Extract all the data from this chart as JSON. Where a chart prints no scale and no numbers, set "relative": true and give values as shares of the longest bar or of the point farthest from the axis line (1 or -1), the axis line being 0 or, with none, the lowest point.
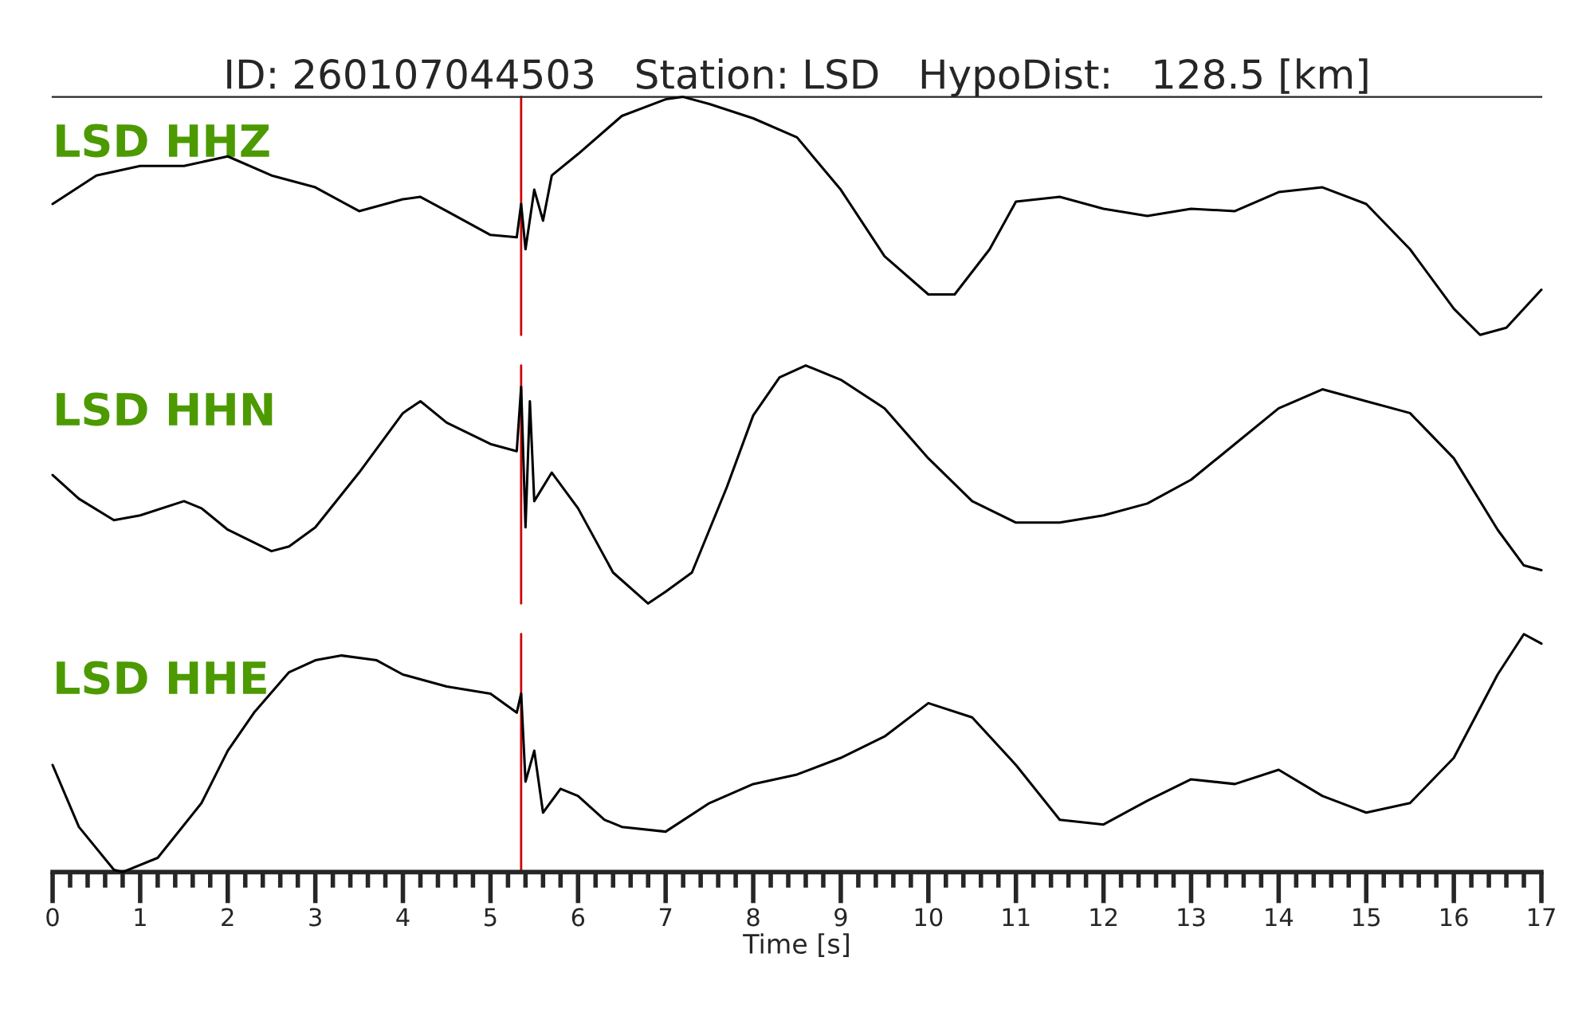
{
  "chart_data": [
    {
      "type": "line",
      "title": "ID: 260107044503   Station: LSD   HypoDist:   128.5 [km]",
      "relative": true,
      "xlim": [
        0,
        17
      ],
      "tick_labels": false,
      "legend": false,
      "grid": false,
      "ref_lines": [
        {
          "axis": "x",
          "value": 5.35,
          "color": "#cc0000"
        }
      ],
      "series": [
        {
          "name": "LSD HHZ",
          "color": "#000000",
          "x": [
            0,
            0.5,
            1,
            1.5,
            2,
            2.5,
            3,
            3.5,
            4,
            4.2,
            4.5,
            5,
            5.3,
            5.35,
            5.4,
            5.5,
            5.6,
            5.7,
            6,
            6.5,
            7,
            7.2,
            7.5,
            8,
            8.5,
            9,
            9.5,
            10,
            10.3,
            10.7,
            11,
            11.5,
            12,
            12.5,
            13,
            13.5,
            14,
            14.5,
            15,
            15.5,
            16,
            16.3,
            16.6,
            17
          ],
          "values": [
            0.55,
            0.67,
            0.71,
            0.71,
            0.75,
            0.67,
            0.62,
            0.52,
            0.57,
            0.58,
            0.52,
            0.42,
            0.41,
            0.55,
            0.36,
            0.61,
            0.48,
            0.67,
            0.76,
            0.92,
            0.99,
            1,
            0.97,
            0.91,
            0.83,
            0.61,
            0.33,
            0.17,
            0.17,
            0.36,
            0.56,
            0.58,
            0.53,
            0.5,
            0.53,
            0.52,
            0.6,
            0.62,
            0.55,
            0.36,
            0.11,
            0,
            0.03,
            0.19
          ]
        }
      ]
    },
    {
      "type": "line",
      "relative": true,
      "xlim": [
        0,
        17
      ],
      "tick_labels": false,
      "legend": false,
      "grid": false,
      "ref_lines": [
        {
          "axis": "x",
          "value": 5.35,
          "color": "#cc0000"
        }
      ],
      "series": [
        {
          "name": "LSD HHN",
          "color": "#000000",
          "x": [
            0,
            0.3,
            0.7,
            1,
            1.5,
            1.7,
            2,
            2.5,
            2.7,
            3,
            3.5,
            4,
            4.2,
            4.5,
            5,
            5.3,
            5.35,
            5.4,
            5.45,
            5.5,
            5.7,
            6,
            6.4,
            6.8,
            7,
            7.3,
            7.7,
            8,
            8.3,
            8.6,
            9,
            9.5,
            10,
            10.5,
            11,
            11.5,
            12,
            12.5,
            13,
            13.5,
            14,
            14.5,
            15,
            15.5,
            16,
            16.5,
            16.8,
            17
          ],
          "values": [
            0.54,
            0.44,
            0.35,
            0.37,
            0.43,
            0.4,
            0.31,
            0.22,
            0.24,
            0.32,
            0.55,
            0.8,
            0.85,
            0.76,
            0.67,
            0.64,
            0.91,
            0.32,
            0.85,
            0.43,
            0.55,
            0.4,
            0.13,
            0,
            0.05,
            0.13,
            0.49,
            0.79,
            0.95,
            1,
            0.94,
            0.82,
            0.61,
            0.43,
            0.34,
            0.34,
            0.37,
            0.42,
            0.52,
            0.67,
            0.82,
            0.9,
            0.85,
            0.8,
            0.61,
            0.31,
            0.16,
            0.14
          ]
        }
      ]
    },
    {
      "type": "line",
      "relative": true,
      "xlim": [
        0,
        17
      ],
      "xlabel": "Time [s]",
      "tick_labels": "x",
      "legend": false,
      "grid": false,
      "xticks": [
        0,
        {
          "value": 0.2,
          "label": null
        },
        {
          "value": 0.4,
          "label": null
        },
        {
          "value": 0.6,
          "label": null
        },
        {
          "value": 0.8,
          "label": null
        },
        1,
        {
          "value": 1.2,
          "label": null
        },
        {
          "value": 1.4,
          "label": null
        },
        {
          "value": 1.6,
          "label": null
        },
        {
          "value": 1.8,
          "label": null
        },
        2,
        {
          "value": 2.2,
          "label": null
        },
        {
          "value": 2.4,
          "label": null
        },
        {
          "value": 2.6,
          "label": null
        },
        {
          "value": 2.8,
          "label": null
        },
        3,
        {
          "value": 3.2,
          "label": null
        },
        {
          "value": 3.4,
          "label": null
        },
        {
          "value": 3.6,
          "label": null
        },
        {
          "value": 3.8,
          "label": null
        },
        4,
        {
          "value": 4.2,
          "label": null
        },
        {
          "value": 4.4,
          "label": null
        },
        {
          "value": 4.6,
          "label": null
        },
        {
          "value": 4.8,
          "label": null
        },
        5,
        {
          "value": 5.2,
          "label": null
        },
        {
          "value": 5.4,
          "label": null
        },
        {
          "value": 5.6,
          "label": null
        },
        {
          "value": 5.8,
          "label": null
        },
        6,
        {
          "value": 6.2,
          "label": null
        },
        {
          "value": 6.4,
          "label": null
        },
        {
          "value": 6.6,
          "label": null
        },
        {
          "value": 6.8,
          "label": null
        },
        7,
        {
          "value": 7.2,
          "label": null
        },
        {
          "value": 7.4,
          "label": null
        },
        {
          "value": 7.6,
          "label": null
        },
        {
          "value": 7.8,
          "label": null
        },
        8,
        {
          "value": 8.2,
          "label": null
        },
        {
          "value": 8.4,
          "label": null
        },
        {
          "value": 8.6,
          "label": null
        },
        {
          "value": 8.8,
          "label": null
        },
        9,
        {
          "value": 9.2,
          "label": null
        },
        {
          "value": 9.4,
          "label": null
        },
        {
          "value": 9.6,
          "label": null
        },
        {
          "value": 9.8,
          "label": null
        },
        10,
        {
          "value": 10.2,
          "label": null
        },
        {
          "value": 10.4,
          "label": null
        },
        {
          "value": 10.6,
          "label": null
        },
        {
          "value": 10.8,
          "label": null
        },
        11,
        {
          "value": 11.2,
          "label": null
        },
        {
          "value": 11.4,
          "label": null
        },
        {
          "value": 11.6,
          "label": null
        },
        {
          "value": 11.8,
          "label": null
        },
        12,
        {
          "value": 12.2,
          "label": null
        },
        {
          "value": 12.4,
          "label": null
        },
        {
          "value": 12.6,
          "label": null
        },
        {
          "value": 12.8,
          "label": null
        },
        13,
        {
          "value": 13.2,
          "label": null
        },
        {
          "value": 13.4,
          "label": null
        },
        {
          "value": 13.6,
          "label": null
        },
        {
          "value": 13.8,
          "label": null
        },
        14,
        {
          "value": 14.2,
          "label": null
        },
        {
          "value": 14.4,
          "label": null
        },
        {
          "value": 14.6,
          "label": null
        },
        {
          "value": 14.8,
          "label": null
        },
        15,
        {
          "value": 15.2,
          "label": null
        },
        {
          "value": 15.4,
          "label": null
        },
        {
          "value": 15.6,
          "label": null
        },
        {
          "value": 15.8,
          "label": null
        },
        16,
        {
          "value": 16.2,
          "label": null
        },
        {
          "value": 16.4,
          "label": null
        },
        {
          "value": 16.6,
          "label": null
        },
        {
          "value": 16.8,
          "label": null
        },
        17
      ],
      "ref_lines": [
        {
          "axis": "x",
          "value": 5.35,
          "color": "#cc0000"
        }
      ],
      "series": [
        {
          "name": "LSD HHE",
          "color": "#000000",
          "x": [
            0,
            0.3,
            0.7,
            0.8,
            1.2,
            1.7,
            2,
            2.3,
            2.7,
            3,
            3.3,
            3.7,
            4,
            4.5,
            5,
            5.3,
            5.35,
            5.4,
            5.5,
            5.6,
            5.8,
            6,
            6.3,
            6.5,
            7,
            7.5,
            8,
            8.5,
            9,
            9.5,
            10,
            10.5,
            11,
            11.5,
            12,
            12.5,
            13,
            13.5,
            14,
            14.5,
            15,
            15.5,
            16,
            16.5,
            16.8,
            17
          ],
          "values": [
            0.45,
            0.19,
            0.01,
            0,
            0.06,
            0.29,
            0.51,
            0.67,
            0.84,
            0.89,
            0.91,
            0.89,
            0.83,
            0.78,
            0.75,
            0.67,
            0.75,
            0.38,
            0.51,
            0.25,
            0.35,
            0.32,
            0.22,
            0.19,
            0.17,
            0.29,
            0.37,
            0.41,
            0.48,
            0.57,
            0.71,
            0.65,
            0.45,
            0.22,
            0.2,
            0.3,
            0.39,
            0.37,
            0.43,
            0.32,
            0.25,
            0.29,
            0.48,
            0.83,
            1,
            0.96
          ]
        }
      ]
    }
  ]
}
